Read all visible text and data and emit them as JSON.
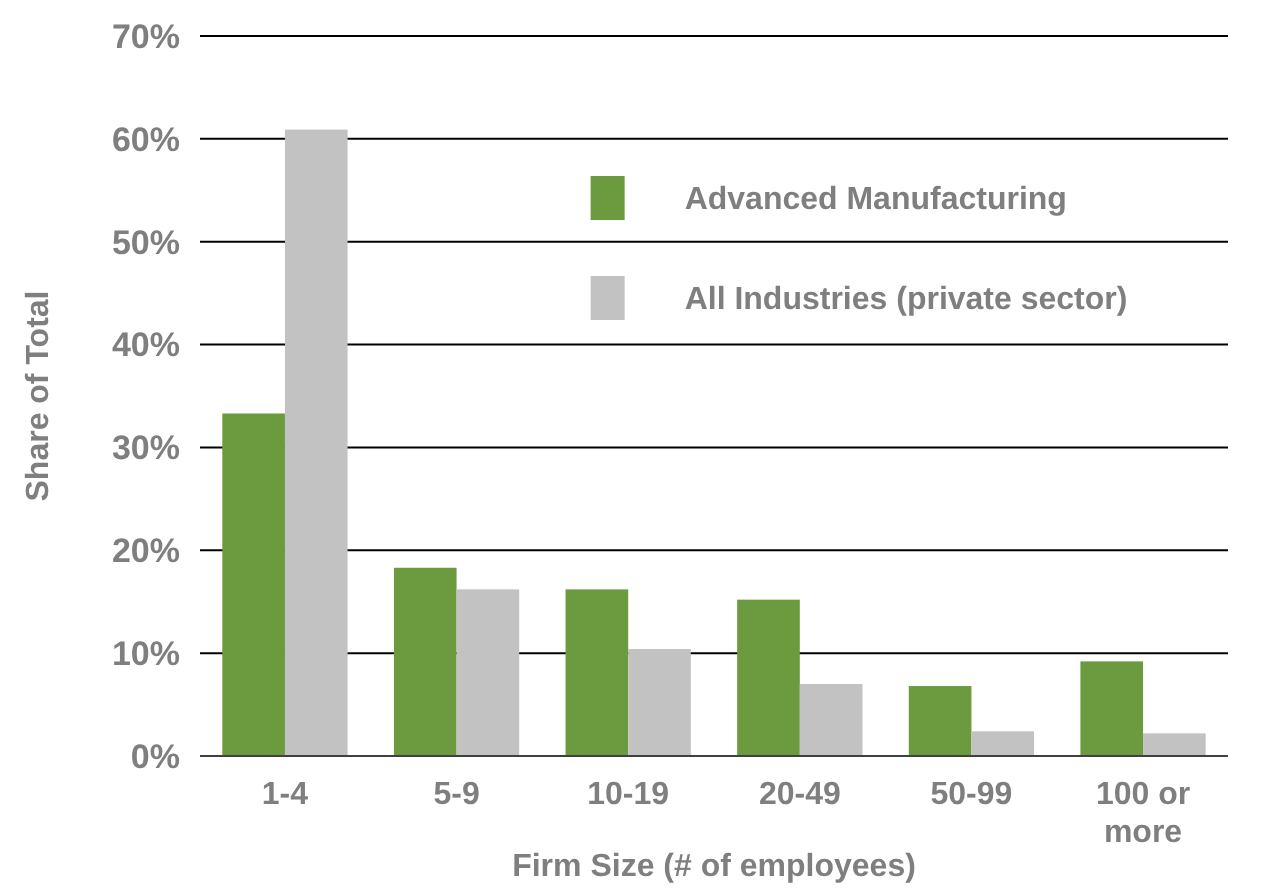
{
  "chart_data": {
    "type": "bar",
    "xlabel": "Firm Size (# of employees)",
    "ylabel": "Share of Total",
    "categories": [
      "1-4",
      "5-9",
      "10-19",
      "20-49",
      "50-99",
      "100 or more"
    ],
    "series": [
      {
        "name": "Advanced Manufacturing",
        "color": "#6b9b3e",
        "values": [
          33.3,
          18.3,
          16.2,
          15.2,
          6.8,
          9.2
        ]
      },
      {
        "name": "All Industries (private sector)",
        "color": "#c2c2c2",
        "values": [
          60.9,
          16.2,
          10.4,
          7.0,
          2.4,
          2.2
        ]
      }
    ],
    "ylim": [
      0,
      70
    ],
    "yticks": [
      {
        "value": 0,
        "label": "0%"
      },
      {
        "value": 10,
        "label": "10%"
      },
      {
        "value": 20,
        "label": "20%"
      },
      {
        "value": 30,
        "label": "30%"
      },
      {
        "value": 40,
        "label": "40%"
      },
      {
        "value": 50,
        "label": "50%"
      },
      {
        "value": 60,
        "label": "60%"
      },
      {
        "value": 70,
        "label": "70%"
      }
    ],
    "grid": "y",
    "legend": "top right"
  }
}
